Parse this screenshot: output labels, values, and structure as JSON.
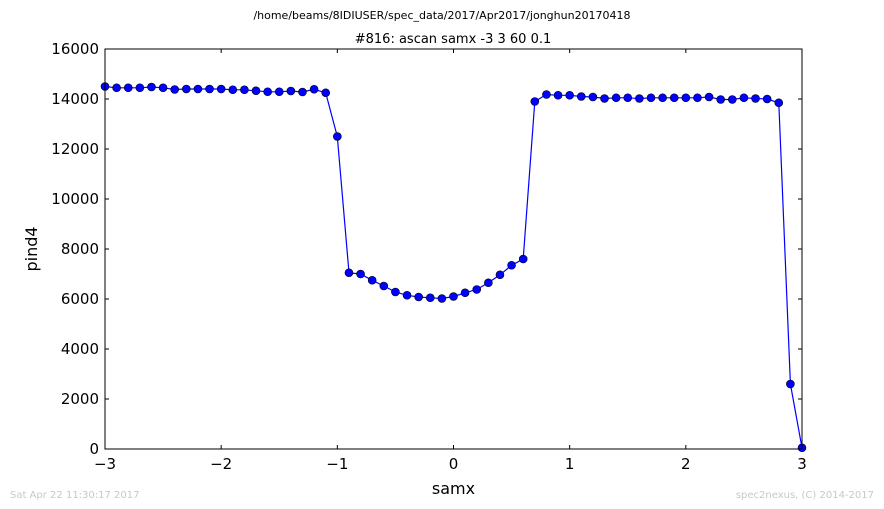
{
  "footer": {
    "left": "Sat Apr 22 11:30:17 2017",
    "right": "spec2nexus, (C) 2014-2017"
  },
  "chart_data": {
    "type": "line",
    "suptitle": "/home/beams/8IDIUSER/spec_data/2017/Apr2017/jonghun20170418",
    "title": "#816: ascan  samx -3 3  60 0.1",
    "xlabel": "samx",
    "ylabel": "pind4",
    "xlim": [
      -3,
      3
    ],
    "ylim": [
      0,
      16000
    ],
    "xticks": [
      -3,
      -2,
      -1,
      0,
      1,
      2,
      3
    ],
    "xtick_labels": [
      "−3",
      "−2",
      "−1",
      "0",
      "1",
      "2",
      "3"
    ],
    "yticks": [
      0,
      2000,
      4000,
      6000,
      8000,
      10000,
      12000,
      14000,
      16000
    ],
    "ytick_labels": [
      "0",
      "2000",
      "4000",
      "6000",
      "8000",
      "10000",
      "12000",
      "14000",
      "16000"
    ],
    "grid": false,
    "color": "#0000ff",
    "marker": "circle",
    "series": [
      {
        "x": [
          -3.0,
          -2.9,
          -2.8,
          -2.7,
          -2.6,
          -2.5,
          -2.4,
          -2.3,
          -2.2,
          -2.1,
          -2.0,
          -1.9,
          -1.8,
          -1.7,
          -1.6,
          -1.5,
          -1.4,
          -1.3,
          -1.2,
          -1.1,
          -1.0,
          -0.9,
          -0.8,
          -0.7,
          -0.6,
          -0.5,
          -0.4,
          -0.3,
          -0.2,
          -0.1,
          0.0,
          0.1,
          0.2,
          0.3,
          0.4,
          0.5,
          0.6,
          0.7,
          0.8,
          0.9,
          1.0,
          1.1,
          1.2,
          1.3,
          1.4,
          1.5,
          1.6,
          1.7,
          1.8,
          1.9,
          2.0,
          2.1,
          2.2,
          2.3,
          2.4,
          2.5,
          2.6,
          2.7,
          2.8,
          2.9,
          3.0
        ],
        "y": [
          14500,
          14450,
          14450,
          14450,
          14480,
          14450,
          14380,
          14400,
          14400,
          14400,
          14400,
          14370,
          14370,
          14330,
          14290,
          14290,
          14320,
          14280,
          14390,
          14250,
          12500,
          7050,
          7000,
          6750,
          6520,
          6280,
          6150,
          6080,
          6050,
          6020,
          6100,
          6250,
          6380,
          6650,
          6970,
          7350,
          7600,
          13900,
          14180,
          14150,
          14150,
          14100,
          14080,
          14020,
          14050,
          14050,
          14020,
          14050,
          14050,
          14050,
          14050,
          14050,
          14080,
          13980,
          13980,
          14050,
          14020,
          14000,
          13850,
          2600,
          50
        ]
      }
    ]
  }
}
